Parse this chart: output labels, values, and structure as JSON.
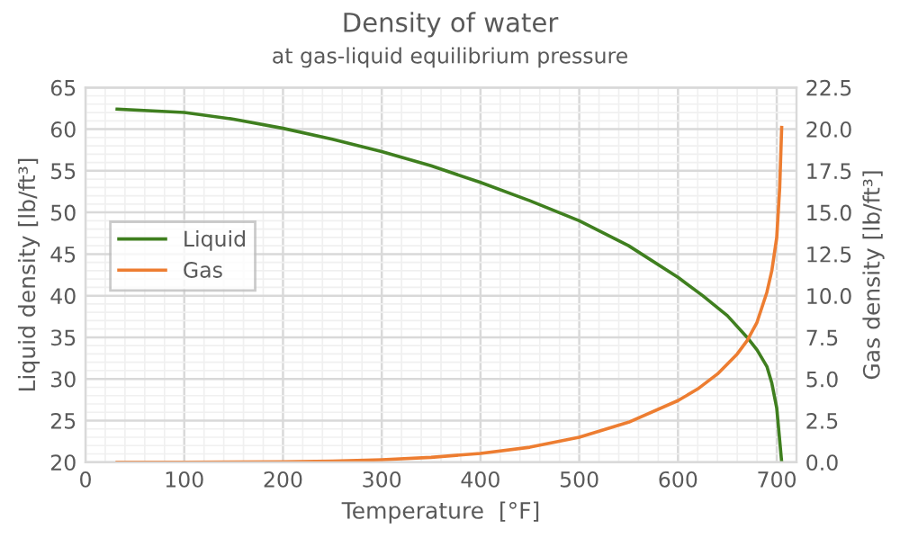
{
  "chart_data": {
    "type": "line",
    "title": "Density of water",
    "subtitle": "at gas-liquid equilibrium pressure",
    "xlabel": "Temperature  [°F]",
    "ylabel": "Liquid density [lb/ft³]",
    "y2label": "Gas density [lb/ft³]",
    "xlim": [
      0,
      720
    ],
    "xticks": [
      0,
      100,
      200,
      300,
      400,
      500,
      600,
      700
    ],
    "ylim": [
      20,
      65
    ],
    "yticks": [
      20,
      25,
      30,
      35,
      40,
      45,
      50,
      55,
      60,
      65
    ],
    "y2lim": [
      0,
      22.5
    ],
    "y2ticks": [
      {
        "value": 0,
        "label": "0.0"
      },
      {
        "value": 2.5,
        "label": "2.5"
      },
      {
        "value": 5,
        "label": "5.0"
      },
      {
        "value": 7.5,
        "label": "7.5"
      },
      {
        "value": 10,
        "label": "10.0"
      },
      {
        "value": 12.5,
        "label": "12.5"
      },
      {
        "value": 15,
        "label": "15.0"
      },
      {
        "value": 17.5,
        "label": "17.5"
      },
      {
        "value": 20,
        "label": "20.0"
      },
      {
        "value": 22.5,
        "label": "22.5"
      }
    ],
    "grid": true,
    "legend": "left",
    "marker": "none",
    "line_style": "solid",
    "series": [
      {
        "name": "Liquid",
        "color": "#3f7f1f",
        "x": [
          32,
          100,
          150,
          200,
          250,
          300,
          350,
          400,
          450,
          500,
          550,
          600,
          625,
          650,
          670,
          680,
          690,
          695,
          700,
          705
        ],
        "values": [
          62.4,
          62.0,
          61.2,
          60.1,
          58.8,
          57.3,
          55.6,
          53.6,
          51.4,
          49.0,
          46.0,
          42.2,
          40.0,
          37.6,
          35.0,
          33.5,
          31.5,
          29.5,
          26.5,
          20.0
        ]
      },
      {
        "name": "Gas",
        "color": "#ed7d31",
        "axis": "y2",
        "x": [
          32,
          100,
          200,
          250,
          300,
          350,
          400,
          450,
          500,
          550,
          600,
          620,
          640,
          660,
          670,
          680,
          690,
          695,
          700,
          703,
          705
        ],
        "values": [
          0.0,
          0.0,
          0.03,
          0.07,
          0.15,
          0.29,
          0.53,
          0.9,
          1.5,
          2.4,
          3.7,
          4.4,
          5.3,
          6.5,
          7.3,
          8.4,
          10.2,
          11.5,
          13.5,
          16.5,
          20.1
        ]
      }
    ]
  }
}
